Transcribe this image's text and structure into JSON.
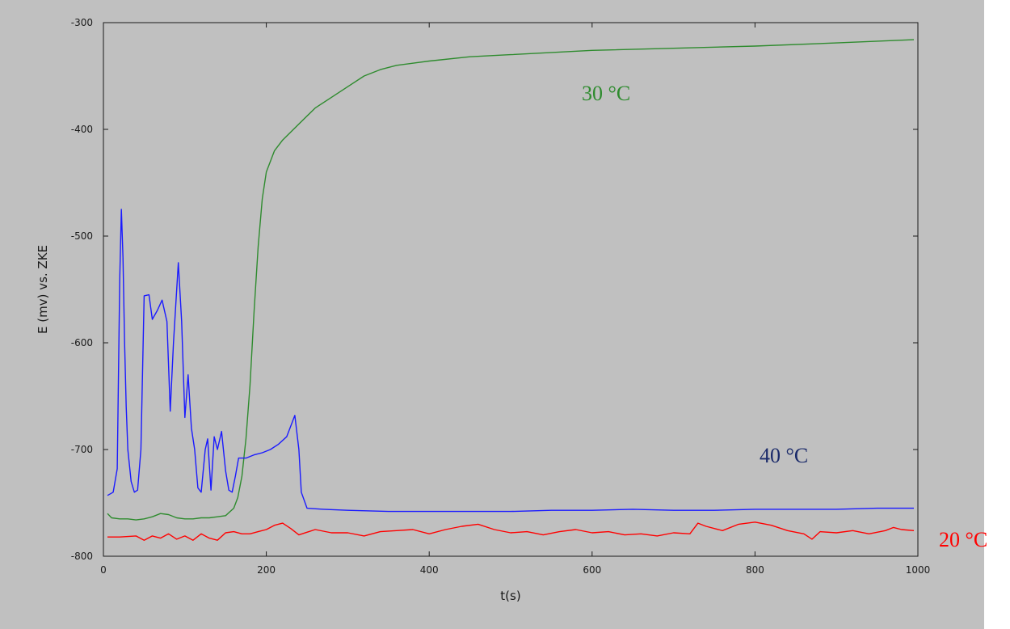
{
  "chart_data": {
    "type": "line",
    "title": "",
    "xlabel": "t(s)",
    "ylabel": "E (mv) vs. ZKE",
    "xlim": [
      0,
      1000
    ],
    "ylim": [
      -800,
      -300
    ],
    "x_ticks": [
      0,
      200,
      400,
      600,
      800,
      1000
    ],
    "y_ticks": [
      -300,
      -400,
      -500,
      -600,
      -700,
      -800
    ],
    "x_tick_labels": [
      "0",
      "200",
      "400",
      "600",
      "800",
      "1000"
    ],
    "y_tick_labels": [
      "-300",
      "-400",
      "-500",
      "-600",
      "-700",
      "-800"
    ],
    "grid": false,
    "legend": "none",
    "series": [
      {
        "name": "30 °C",
        "color": "#2e8b2e",
        "points": [
          [
            5,
            -760
          ],
          [
            10,
            -764
          ],
          [
            20,
            -765
          ],
          [
            30,
            -765
          ],
          [
            40,
            -766
          ],
          [
            50,
            -765
          ],
          [
            60,
            -763
          ],
          [
            70,
            -760
          ],
          [
            80,
            -761
          ],
          [
            90,
            -764
          ],
          [
            100,
            -765
          ],
          [
            110,
            -765
          ],
          [
            120,
            -764
          ],
          [
            130,
            -764
          ],
          [
            140,
            -763
          ],
          [
            150,
            -762
          ],
          [
            160,
            -755
          ],
          [
            165,
            -745
          ],
          [
            170,
            -725
          ],
          [
            175,
            -690
          ],
          [
            180,
            -640
          ],
          [
            185,
            -570
          ],
          [
            190,
            -510
          ],
          [
            195,
            -465
          ],
          [
            200,
            -440
          ],
          [
            210,
            -420
          ],
          [
            220,
            -410
          ],
          [
            240,
            -395
          ],
          [
            260,
            -380
          ],
          [
            280,
            -370
          ],
          [
            300,
            -360
          ],
          [
            320,
            -350
          ],
          [
            340,
            -344
          ],
          [
            360,
            -340
          ],
          [
            400,
            -336
          ],
          [
            450,
            -332
          ],
          [
            500,
            -330
          ],
          [
            600,
            -326
          ],
          [
            700,
            -324
          ],
          [
            800,
            -322
          ],
          [
            900,
            -319
          ],
          [
            995,
            -316
          ]
        ]
      },
      {
        "name": "40 °C",
        "color": "#1a1aff",
        "points": [
          [
            5,
            -743
          ],
          [
            12,
            -740
          ],
          [
            17,
            -718
          ],
          [
            20,
            -540
          ],
          [
            22,
            -475
          ],
          [
            24,
            -520
          ],
          [
            26,
            -600
          ],
          [
            28,
            -660
          ],
          [
            30,
            -700
          ],
          [
            34,
            -730
          ],
          [
            38,
            -740
          ],
          [
            42,
            -738
          ],
          [
            46,
            -700
          ],
          [
            50,
            -556
          ],
          [
            56,
            -555
          ],
          [
            60,
            -578
          ],
          [
            66,
            -570
          ],
          [
            72,
            -560
          ],
          [
            78,
            -580
          ],
          [
            82,
            -664
          ],
          [
            86,
            -600
          ],
          [
            92,
            -525
          ],
          [
            96,
            -580
          ],
          [
            100,
            -670
          ],
          [
            104,
            -630
          ],
          [
            108,
            -680
          ],
          [
            112,
            -700
          ],
          [
            116,
            -736
          ],
          [
            120,
            -740
          ],
          [
            125,
            -700
          ],
          [
            128,
            -690
          ],
          [
            132,
            -738
          ],
          [
            136,
            -688
          ],
          [
            140,
            -700
          ],
          [
            145,
            -683
          ],
          [
            150,
            -720
          ],
          [
            154,
            -738
          ],
          [
            158,
            -740
          ],
          [
            162,
            -725
          ],
          [
            166,
            -708
          ],
          [
            175,
            -708
          ],
          [
            185,
            -705
          ],
          [
            195,
            -703
          ],
          [
            205,
            -700
          ],
          [
            215,
            -695
          ],
          [
            225,
            -688
          ],
          [
            235,
            -668
          ],
          [
            240,
            -700
          ],
          [
            243,
            -740
          ],
          [
            250,
            -755
          ],
          [
            270,
            -756
          ],
          [
            300,
            -757
          ],
          [
            350,
            -758
          ],
          [
            400,
            -758
          ],
          [
            450,
            -758
          ],
          [
            500,
            -758
          ],
          [
            550,
            -757
          ],
          [
            600,
            -757
          ],
          [
            650,
            -756
          ],
          [
            700,
            -757
          ],
          [
            750,
            -757
          ],
          [
            800,
            -756
          ],
          [
            850,
            -756
          ],
          [
            900,
            -756
          ],
          [
            950,
            -755
          ],
          [
            995,
            -755
          ]
        ]
      },
      {
        "name": "20 °C",
        "color": "#ff0000",
        "points": [
          [
            5,
            -782
          ],
          [
            20,
            -782
          ],
          [
            40,
            -781
          ],
          [
            50,
            -785
          ],
          [
            60,
            -781
          ],
          [
            70,
            -783
          ],
          [
            80,
            -779
          ],
          [
            90,
            -784
          ],
          [
            100,
            -781
          ],
          [
            110,
            -785
          ],
          [
            120,
            -779
          ],
          [
            130,
            -783
          ],
          [
            140,
            -785
          ],
          [
            150,
            -778
          ],
          [
            160,
            -777
          ],
          [
            170,
            -779
          ],
          [
            180,
            -779
          ],
          [
            190,
            -777
          ],
          [
            200,
            -775
          ],
          [
            210,
            -771
          ],
          [
            220,
            -769
          ],
          [
            230,
            -774
          ],
          [
            240,
            -780
          ],
          [
            260,
            -775
          ],
          [
            280,
            -778
          ],
          [
            300,
            -778
          ],
          [
            320,
            -781
          ],
          [
            340,
            -777
          ],
          [
            360,
            -776
          ],
          [
            380,
            -775
          ],
          [
            400,
            -779
          ],
          [
            420,
            -775
          ],
          [
            440,
            -772
          ],
          [
            460,
            -770
          ],
          [
            480,
            -775
          ],
          [
            500,
            -778
          ],
          [
            520,
            -777
          ],
          [
            540,
            -780
          ],
          [
            560,
            -777
          ],
          [
            580,
            -775
          ],
          [
            600,
            -778
          ],
          [
            620,
            -777
          ],
          [
            640,
            -780
          ],
          [
            660,
            -779
          ],
          [
            680,
            -781
          ],
          [
            700,
            -778
          ],
          [
            720,
            -779
          ],
          [
            730,
            -769
          ],
          [
            740,
            -772
          ],
          [
            760,
            -776
          ],
          [
            780,
            -770
          ],
          [
            800,
            -768
          ],
          [
            820,
            -771
          ],
          [
            840,
            -776
          ],
          [
            860,
            -779
          ],
          [
            870,
            -784
          ],
          [
            880,
            -777
          ],
          [
            900,
            -778
          ],
          [
            920,
            -776
          ],
          [
            940,
            -779
          ],
          [
            960,
            -776
          ],
          [
            970,
            -773
          ],
          [
            980,
            -775
          ],
          [
            995,
            -776
          ]
        ]
      }
    ]
  }
}
